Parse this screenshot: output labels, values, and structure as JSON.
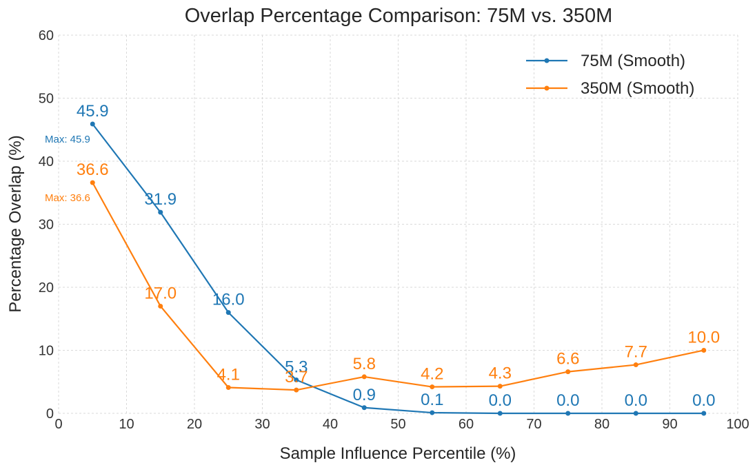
{
  "chart_data": {
    "type": "line",
    "title": "Overlap Percentage Comparison: 75M vs. 350M",
    "xlabel": "Sample Influence Percentile (%)",
    "ylabel": "Percentage Overlap (%)",
    "xlim": [
      0,
      100
    ],
    "ylim": [
      0,
      60
    ],
    "xticks": [
      "0",
      "10",
      "20",
      "30",
      "40",
      "50",
      "60",
      "70",
      "80",
      "90",
      "100"
    ],
    "yticks": [
      "0",
      "10",
      "20",
      "30",
      "40",
      "50",
      "60"
    ],
    "grid": true,
    "legend_position": "top-right",
    "x": [
      5,
      15,
      25,
      35,
      45,
      55,
      65,
      75,
      85,
      95
    ],
    "series": [
      {
        "name": "75M (Smooth)",
        "color": "#1f77b4",
        "values": [
          45.9,
          31.9,
          16.0,
          5.3,
          0.9,
          0.1,
          0.0,
          0.0,
          0.0,
          0.0
        ],
        "labels": [
          "45.9",
          "31.9",
          "16.0",
          "5.3",
          "0.9",
          "0.1",
          "0.0",
          "0.0",
          "0.0",
          "0.0"
        ],
        "max_annotation": "Max: 45.9",
        "max_value": 45.9
      },
      {
        "name": "350M (Smooth)",
        "color": "#ff7f0e",
        "values": [
          36.6,
          17.0,
          4.1,
          3.7,
          5.8,
          4.2,
          4.3,
          6.6,
          7.7,
          10.0
        ],
        "labels": [
          "36.6",
          "17.0",
          "4.1",
          "3.7",
          "5.8",
          "4.2",
          "4.3",
          "6.6",
          "7.7",
          "10.0"
        ],
        "max_annotation": "Max: 36.6",
        "max_value": 36.6
      }
    ]
  }
}
